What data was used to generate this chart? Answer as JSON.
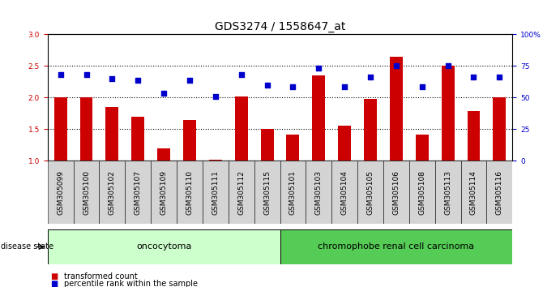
{
  "title": "GDS3274 / 1558647_at",
  "samples": [
    "GSM305099",
    "GSM305100",
    "GSM305102",
    "GSM305107",
    "GSM305109",
    "GSM305110",
    "GSM305111",
    "GSM305112",
    "GSM305115",
    "GSM305101",
    "GSM305103",
    "GSM305104",
    "GSM305105",
    "GSM305106",
    "GSM305108",
    "GSM305113",
    "GSM305114",
    "GSM305116"
  ],
  "red_values": [
    2.0,
    2.0,
    1.85,
    1.7,
    1.2,
    1.65,
    1.02,
    2.02,
    1.5,
    1.42,
    2.35,
    1.55,
    1.98,
    2.65,
    1.42,
    2.5,
    1.78,
    2.0
  ],
  "blue_values": [
    2.37,
    2.37,
    2.3,
    2.27,
    2.07,
    2.27,
    2.02,
    2.37,
    2.2,
    2.17,
    2.47,
    2.17,
    2.33,
    2.5,
    2.17,
    2.5,
    2.33,
    2.33
  ],
  "ylim_left": [
    1.0,
    3.0
  ],
  "ylim_right": [
    0,
    100
  ],
  "yticks_left": [
    1.0,
    1.5,
    2.0,
    2.5,
    3.0
  ],
  "yticks_right": [
    0,
    25,
    50,
    75,
    100
  ],
  "ytick_labels_right": [
    "0",
    "25",
    "50",
    "75",
    "100%"
  ],
  "hlines": [
    1.5,
    2.0,
    2.5
  ],
  "bar_color": "#cc0000",
  "dot_color": "#0000cc",
  "group1_label": "oncocytoma",
  "group2_label": "chromophobe renal cell carcinoma",
  "group1_count": 9,
  "group2_count": 9,
  "group1_color": "#ccffcc",
  "group2_color": "#55cc55",
  "tick_bg_color": "#d4d4d4",
  "disease_state_label": "disease state",
  "legend1": "transformed count",
  "legend2": "percentile rank within the sample",
  "bar_width": 0.5,
  "title_fontsize": 10,
  "tick_fontsize": 6.5,
  "background_color": "#ffffff"
}
